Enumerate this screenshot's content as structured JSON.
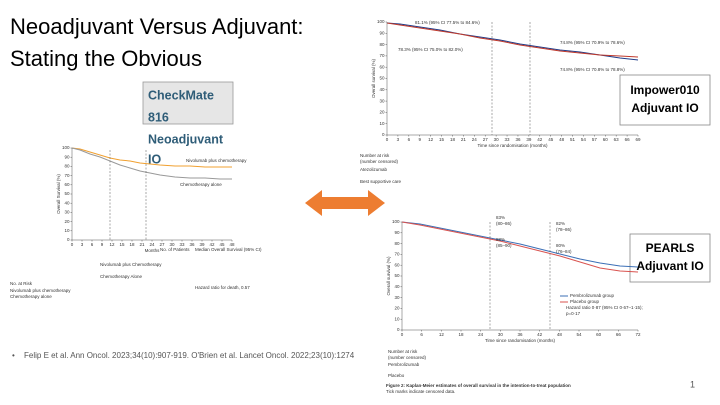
{
  "slide": {
    "title_lines": [
      "Neoadjuvant Versus Adjuvant:",
      "Stating the Obvious"
    ],
    "labels": [
      {
        "lines": [
          "CheckMate",
          "816",
          "Neoadjuvant",
          "IO"
        ]
      },
      {
        "lines": [
          "Impower010",
          "Adjuvant IO"
        ]
      },
      {
        "lines": [
          "PEARLS",
          "Adjuvant IO"
        ]
      }
    ],
    "figures": [
      {
        "y_label": "Overall Survival (%)",
        "x_label": "Months",
        "yticks": [
          0,
          10,
          20,
          30,
          40,
          50,
          60,
          70,
          80,
          90,
          100
        ],
        "xticks": [
          0,
          3,
          6,
          9,
          12,
          15,
          18,
          21,
          24,
          27,
          30,
          33,
          36,
          39,
          42,
          45,
          48
        ],
        "series_labels": [
          "Nivolumab plus chemotherapy",
          "Chemotherapy alone"
        ],
        "table_head": [
          "No. of Patients",
          "Median Overall Survival (95% CI)"
        ],
        "table_rows": [
          "Nivolumab plus Chemotherapy",
          "Chemotherapy Alone"
        ],
        "hazard": "Hazard ratio for death, 0.57",
        "risk_title": "No. at Risk"
      },
      {
        "y_label": "Overall survival (%)",
        "x_label": "Time since randomisation (months)",
        "yticks": [
          0,
          10,
          20,
          30,
          40,
          50,
          60,
          70,
          80,
          90,
          100
        ],
        "xticks": [
          0,
          3,
          6,
          9,
          12,
          15,
          18,
          21,
          24,
          27,
          30,
          33,
          36,
          39,
          42,
          45,
          48,
          51,
          54,
          57,
          60,
          63,
          66,
          69
        ],
        "annotations": [
          "81.1% (95% CI 77.5% to 84.6%)",
          "78.3% (95% CI 75.0% to 82.0%)",
          "74.8% (95% CI 70.9% to 78.6%)",
          "74.8% (95% CI 70.8% to 78.8%)"
        ],
        "risk_title": "Number at risk",
        "risk_subtitle": "(number censored)",
        "risk_rows": [
          "Atezolizumab",
          "Best supportive care"
        ]
      },
      {
        "y_label": "Overall survival (%)",
        "x_label": "Time since randomisation (months)",
        "yticks": [
          0,
          10,
          20,
          30,
          40,
          50,
          60,
          70,
          80,
          90,
          100
        ],
        "xticks": [
          0,
          6,
          12,
          18,
          24,
          30,
          36,
          42,
          48,
          54,
          60,
          66,
          72
        ],
        "annotations": [
          "83%",
          "(80–86)",
          "88%",
          "(85–90)",
          "82%",
          "(78–86)",
          "80%",
          "(76–84)"
        ],
        "legend": [
          "Pembrolizumab group",
          "Placebo group",
          "Hazard ratio 0·87 (95% CI 0·67–1·15);",
          "p=0·17"
        ],
        "risk_title": "Number at risk",
        "risk_subtitle": "(number censored)",
        "risk_rows": [
          "Pembrolizumab",
          "Placebo"
        ],
        "caption": "Figure 2: Kaplan-Meier estimates of overall survival in the intention-to-treat population",
        "caption_note": "Tick marks indicate censored data."
      }
    ],
    "citation": "Felip E et al. Ann Oncol. 2023;34(10):907-919.  O'Brien et al. Lancet Oncol. 2022;23(10):1274",
    "page_number": "1"
  }
}
